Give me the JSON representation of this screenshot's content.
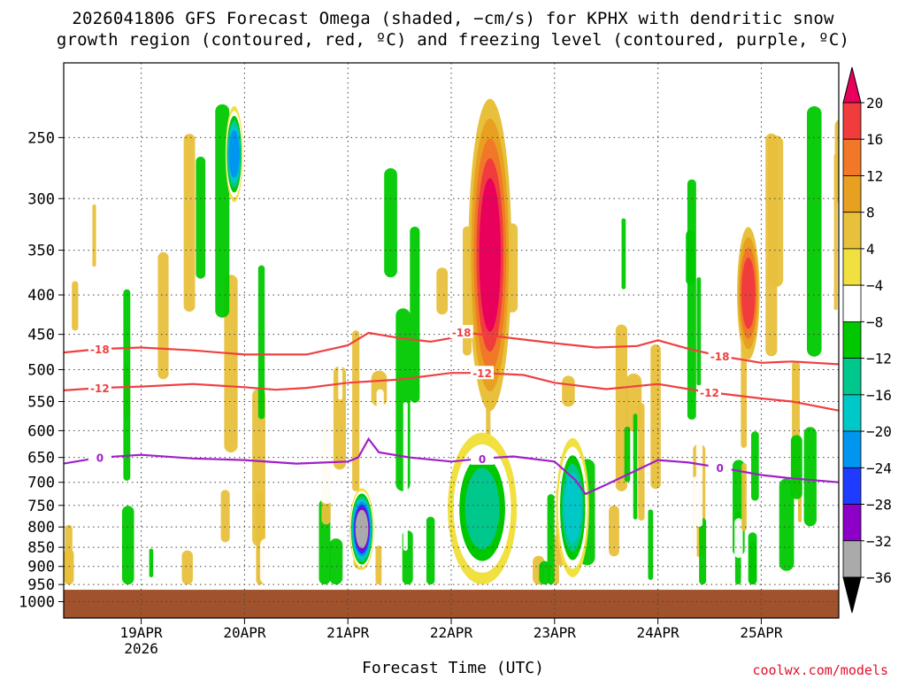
{
  "title_line1": "2026041806 GFS Forecast Omega (shaded, −cm/s) for KPHX with dendritic snow",
  "title_line2": "growth region (contoured, red, ºC) and freezing level (contoured, purple, ºC)",
  "credit": "coolwx.com/models",
  "chart_data": {
    "type": "heatmap",
    "title": "2026041806 GFS Forecast Omega (shaded, −cm/s) for KPHX with dendritic snow growth region (contoured, red, ºC) and freezing level (contoured, purple, ºC)",
    "xlabel": "Forecast Time (UTC)",
    "ylabel": "",
    "x_ticks": [
      "19APR",
      "20APR",
      "21APR",
      "22APR",
      "23APR",
      "24APR",
      "25APR"
    ],
    "x_tick_sublabel": "2026",
    "x_range_days": [
      18.25,
      25.75
    ],
    "y_ticks": [
      250,
      300,
      350,
      400,
      450,
      500,
      550,
      600,
      650,
      700,
      750,
      800,
      850,
      900,
      950,
      1000
    ],
    "y_range_hpa": [
      200,
      1050
    ],
    "surface_pressure_hpa": 965,
    "grid": true,
    "colorbar": {
      "labels": [
        "20",
        "16",
        "12",
        "8",
        "4",
        "−4",
        "−8",
        "−12",
        "−16",
        "−20",
        "−24",
        "−28",
        "−32",
        "−36"
      ],
      "colors": [
        "#e8005c",
        "#f03c3c",
        "#f07828",
        "#e8a020",
        "#e8c03c",
        "#f0e040",
        "#ffffff",
        "#00c800",
        "#00c88c",
        "#00c8c8",
        "#0096f0",
        "#1e3cff",
        "#8c00c8",
        "#aaaaaa",
        "#000000"
      ]
    },
    "contours": [
      {
        "name": "-18",
        "color": "#f04040",
        "points": [
          [
            18.25,
            475
          ],
          [
            18.6,
            470
          ],
          [
            19.0,
            468
          ],
          [
            19.5,
            472
          ],
          [
            20.0,
            478
          ],
          [
            20.6,
            478
          ],
          [
            21.0,
            465
          ],
          [
            21.2,
            448
          ],
          [
            21.5,
            455
          ],
          [
            21.8,
            460
          ],
          [
            22.0,
            455
          ],
          [
            22.1,
            447
          ],
          [
            22.4,
            452
          ],
          [
            22.7,
            457
          ],
          [
            23.0,
            462
          ],
          [
            23.4,
            468
          ],
          [
            23.8,
            466
          ],
          [
            24.0,
            458
          ],
          [
            24.3,
            470
          ],
          [
            24.6,
            480
          ],
          [
            25.0,
            490
          ],
          [
            25.3,
            488
          ],
          [
            25.75,
            492
          ]
        ]
      },
      {
        "name": "-12",
        "color": "#f04040",
        "points": [
          [
            18.25,
            532
          ],
          [
            18.6,
            528
          ],
          [
            19.0,
            526
          ],
          [
            19.5,
            522
          ],
          [
            20.0,
            527
          ],
          [
            20.3,
            531
          ],
          [
            20.6,
            528
          ],
          [
            21.0,
            520
          ],
          [
            21.5,
            515
          ],
          [
            22.0,
            505
          ],
          [
            22.3,
            505
          ],
          [
            22.7,
            508
          ],
          [
            23.0,
            520
          ],
          [
            23.5,
            530
          ],
          [
            24.0,
            522
          ],
          [
            24.3,
            530
          ],
          [
            24.5,
            535
          ],
          [
            25.0,
            545
          ],
          [
            25.3,
            550
          ],
          [
            25.75,
            565
          ]
        ]
      },
      {
        "name": "0",
        "color": "#a020c8",
        "points": [
          [
            18.25,
            662
          ],
          [
            18.6,
            650
          ],
          [
            19.0,
            645
          ],
          [
            19.5,
            652
          ],
          [
            20.0,
            655
          ],
          [
            20.5,
            662
          ],
          [
            21.0,
            658
          ],
          [
            21.1,
            650
          ],
          [
            21.2,
            615
          ],
          [
            21.3,
            640
          ],
          [
            21.6,
            650
          ],
          [
            22.0,
            658
          ],
          [
            22.3,
            652
          ],
          [
            22.6,
            648
          ],
          [
            23.0,
            658
          ],
          [
            23.2,
            695
          ],
          [
            23.3,
            725
          ],
          [
            23.5,
            705
          ],
          [
            24.0,
            655
          ],
          [
            24.3,
            660
          ],
          [
            24.6,
            670
          ],
          [
            25.0,
            685
          ],
          [
            25.3,
            692
          ],
          [
            25.75,
            700
          ]
        ]
      }
    ],
    "shaded_regions": [
      {
        "x": [
          22.2,
          22.55
        ],
        "p": [
          225,
          560
        ],
        "omega": 20
      },
      {
        "x": [
          21.05,
          21.22
        ],
        "p": [
          720,
          900
        ],
        "omega": -36
      },
      {
        "x": [
          22.0,
          22.6
        ],
        "p": [
          610,
          940
        ],
        "omega": -16
      },
      {
        "x": [
          23.05,
          23.3
        ],
        "p": [
          620,
          920
        ],
        "omega": -20
      },
      {
        "x": [
          24.8,
          24.95
        ],
        "p": [
          330,
          480
        ],
        "omega": 16
      },
      {
        "x": [
          19.85,
          19.95
        ],
        "p": [
          230,
          300
        ],
        "omega": -24
      }
    ]
  }
}
